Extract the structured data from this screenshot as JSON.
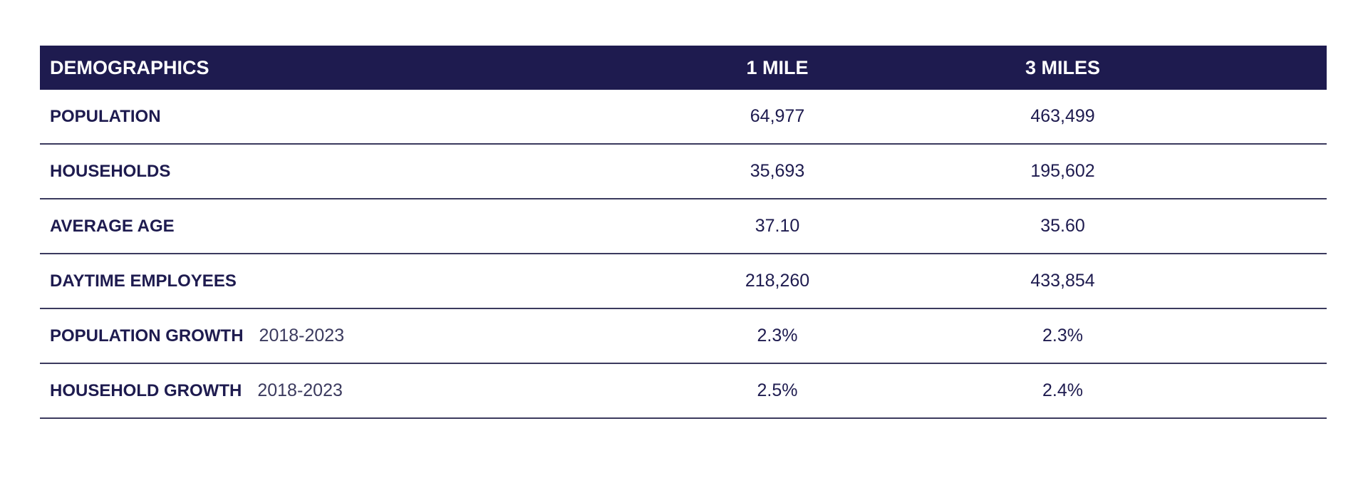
{
  "table": {
    "header": [
      "DEMOGRAPHICS",
      "1 MILE",
      "3 MILES"
    ],
    "rows": [
      {
        "label": "POPULATION",
        "values": [
          "64,977",
          "463,499"
        ]
      },
      {
        "label": "HOUSEHOLDS",
        "values": [
          "35,693",
          "195,602"
        ]
      },
      {
        "label": "AVERAGE AGE",
        "values": [
          "37.10",
          "35.60"
        ]
      },
      {
        "label": "DAYTIME EMPLOYEES",
        "values": [
          "218,260",
          "433,854"
        ]
      },
      {
        "label": "POPULATION GROWTH",
        "note": "2018-2023",
        "values": [
          "2.3%",
          "2.3%"
        ]
      },
      {
        "label": "HOUSEHOLD GROWTH",
        "note": "2018-2023",
        "values": [
          "2.5%",
          "2.4%"
        ]
      }
    ]
  }
}
